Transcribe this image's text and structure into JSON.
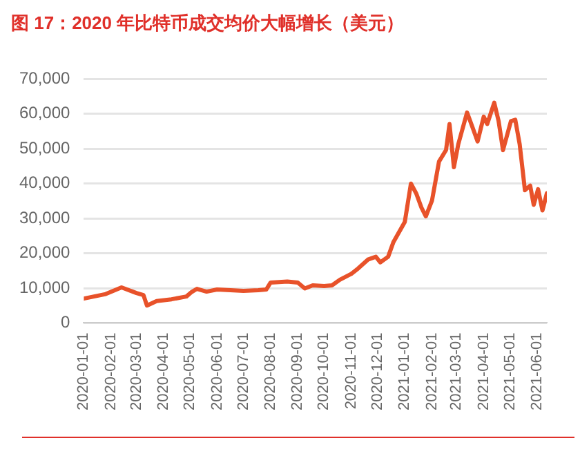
{
  "chart_data": {
    "type": "line",
    "title": "图 17：2020 年比特币成交均价大幅增长（美元）",
    "x": [
      "2020-01-01",
      "2020-01-26",
      "2020-02-13",
      "2020-03-01",
      "2020-03-09",
      "2020-03-13",
      "2020-03-24",
      "2020-04-10",
      "2020-04-27",
      "2020-05-03",
      "2020-05-09",
      "2020-05-20",
      "2020-06-01",
      "2020-07-01",
      "2020-07-18",
      "2020-07-27",
      "2020-08-01",
      "2020-08-20",
      "2020-09-01",
      "2020-09-09",
      "2020-09-18",
      "2020-10-01",
      "2020-10-10",
      "2020-10-19",
      "2020-11-01",
      "2020-11-09",
      "2020-11-20",
      "2020-11-29",
      "2020-12-04",
      "2020-12-13",
      "2020-12-19",
      "2021-01-01",
      "2021-01-08",
      "2021-01-14",
      "2021-01-20",
      "2021-01-25",
      "2021-02-01",
      "2021-02-09",
      "2021-02-17",
      "2021-02-21",
      "2021-02-26",
      "2021-03-03",
      "2021-03-13",
      "2021-03-19",
      "2021-03-25",
      "2021-04-01",
      "2021-04-05",
      "2021-04-13",
      "2021-04-18",
      "2021-04-23",
      "2021-05-02",
      "2021-05-07",
      "2021-05-12",
      "2021-05-18",
      "2021-05-24",
      "2021-05-28",
      "2021-06-02",
      "2021-06-07",
      "2021-06-12"
    ],
    "series": [
      {
        "color": "#e8522a",
        "values": [
          7000,
          8300,
          10200,
          8600,
          8000,
          5000,
          6300,
          6800,
          7600,
          8900,
          9800,
          9000,
          9600,
          9200,
          9400,
          9600,
          11600,
          11900,
          11600,
          9900,
          10800,
          10600,
          10800,
          12400,
          14100,
          15700,
          18200,
          19000,
          17400,
          19000,
          23200,
          29000,
          40000,
          37200,
          33100,
          30600,
          35100,
          46300,
          49600,
          57100,
          44700,
          51300,
          60400,
          56300,
          52100,
          59200,
          57100,
          63200,
          57900,
          49600,
          57900,
          58300,
          51300,
          38100,
          39400,
          33900,
          38400,
          32300,
          37200
        ]
      }
    ],
    "xlim": [
      "2020-01-01",
      "2021-06-12"
    ],
    "xticks": [
      "2020-01-01",
      "2020-02-01",
      "2020-03-01",
      "2020-04-01",
      "2020-05-01",
      "2020-06-01",
      "2020-07-01",
      "2020-08-01",
      "2020-09-01",
      "2020-10-01",
      "2020-11-01",
      "2020-12-01",
      "2021-01-01",
      "2021-02-01",
      "2021-03-01",
      "2021-04-01",
      "2021-05-01",
      "2021-06-01"
    ],
    "ylim": [
      0,
      70000
    ],
    "yticks": [
      {
        "value": 0,
        "label": "0"
      },
      {
        "value": 10000,
        "label": "10,000"
      },
      {
        "value": 20000,
        "label": "20,000"
      },
      {
        "value": 30000,
        "label": "30,000"
      },
      {
        "value": 40000,
        "label": "40,000"
      },
      {
        "value": 50000,
        "label": "50,000"
      },
      {
        "value": 60000,
        "label": "60,000"
      },
      {
        "value": 70000,
        "label": "70,000"
      }
    ],
    "grid": "y",
    "legend": false,
    "marker": "none",
    "line_style": "solid"
  }
}
